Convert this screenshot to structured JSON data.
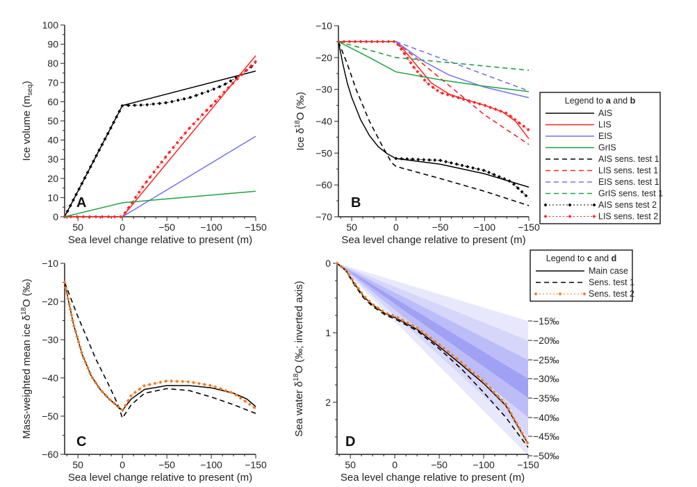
{
  "chart_data": [
    {
      "panel": "A",
      "type": "line",
      "xlabel": "Sea level change relative to present (m)",
      "ylabel": "Ice volume (m",
      "ylabel_sub": "seq",
      "ylabel_end": ")",
      "xlim": [
        65,
        -150
      ],
      "ylim": [
        0,
        100
      ],
      "xticks": [
        50,
        0,
        -50,
        -100,
        -150
      ],
      "yticks": [
        0,
        10,
        20,
        30,
        40,
        50,
        60,
        70,
        80,
        90,
        100
      ],
      "yminor": 5,
      "series": [
        {
          "name": "AIS",
          "color": "#000000",
          "style": "solid",
          "x": [
            65,
            0,
            -150
          ],
          "y": [
            0,
            58,
            76
          ]
        },
        {
          "name": "AIS sens test 2",
          "color": "#000000",
          "style": "marker",
          "x": [
            65,
            0,
            -25,
            -50,
            -75,
            -100,
            -115,
            -130,
            -150
          ],
          "y": [
            0,
            58,
            58.3,
            59.5,
            62,
            66,
            69,
            73,
            80
          ]
        },
        {
          "name": "LIS",
          "color": "#ff2020",
          "style": "solid",
          "x": [
            65,
            0,
            -150
          ],
          "y": [
            0,
            0,
            84
          ]
        },
        {
          "name": "LIS sens. test 2",
          "color": "#ff2020",
          "style": "marker",
          "x": [
            65,
            0,
            -25,
            -50,
            -75,
            -100,
            -125,
            -150
          ],
          "y": [
            0,
            0,
            17,
            32,
            46,
            58,
            70,
            81
          ]
        },
        {
          "name": "EIS",
          "color": "#7070f0",
          "style": "solid",
          "x": [
            0,
            -150
          ],
          "y": [
            0,
            42
          ]
        },
        {
          "name": "GrIS",
          "color": "#20a040",
          "style": "solid",
          "x": [
            65,
            0,
            -150
          ],
          "y": [
            0,
            7.3,
            13.3
          ]
        }
      ]
    },
    {
      "panel": "B",
      "type": "line",
      "xlabel": "Sea level change relative to present (m)",
      "ylabel": "Ice δ",
      "ylabel_sup": "18",
      "ylabel_end": "O (‰)",
      "xlim": [
        65,
        -150
      ],
      "ylim": [
        -70,
        -10
      ],
      "xticks": [
        50,
        0,
        -50,
        -100,
        -150
      ],
      "yticks": [
        -70,
        -60,
        -50,
        -40,
        -30,
        -20,
        -10
      ],
      "yminor": 5,
      "series": [
        {
          "name": "AIS",
          "color": "#000000",
          "style": "solid",
          "x": [
            65,
            60,
            55,
            50,
            40,
            30,
            20,
            10,
            0,
            -50,
            -100,
            -150
          ],
          "y": [
            -15,
            -22,
            -28,
            -32.5,
            -39.5,
            -44.5,
            -48,
            -50.2,
            -51.7,
            -53.5,
            -56.5,
            -60.7
          ]
        },
        {
          "name": "AIS sens. test 1",
          "color": "#000000",
          "style": "dashed",
          "x": [
            65,
            55,
            45,
            30,
            15,
            5,
            0,
            -50,
            -100,
            -150
          ],
          "y": [
            -15,
            -22,
            -30,
            -40,
            -48,
            -53,
            -54.2,
            -58,
            -62,
            -66.5
          ]
        },
        {
          "name": "AIS sens test 2",
          "color": "#000000",
          "style": "marker",
          "x": [
            0,
            -50,
            -100,
            -130,
            -150
          ],
          "y": [
            -51.7,
            -52.3,
            -55.5,
            -59,
            -64.2
          ]
        },
        {
          "name": "LIS",
          "color": "#ff2020",
          "style": "solid",
          "x": [
            65,
            0,
            -10,
            -25,
            -40,
            -60,
            -80,
            -100,
            -120,
            -135,
            -150
          ],
          "y": [
            -15,
            -15,
            -18,
            -23,
            -28,
            -31.5,
            -33.3,
            -35,
            -37,
            -40,
            -45.5
          ]
        },
        {
          "name": "LIS sens. test 1",
          "color": "#ff2020",
          "style": "dashed",
          "x": [
            0,
            -50,
            -100,
            -150
          ],
          "y": [
            -15,
            -26.5,
            -38,
            -47.3
          ]
        },
        {
          "name": "LIS sens. test 2",
          "color": "#ff2020",
          "style": "marker",
          "x": [
            65,
            0,
            -10,
            -20,
            -35,
            -50,
            -75,
            -100,
            -125,
            -150
          ],
          "y": [
            -15,
            -15,
            -19,
            -23,
            -28,
            -31,
            -33,
            -35,
            -37.5,
            -42.8
          ]
        },
        {
          "name": "EIS",
          "color": "#7070f0",
          "style": "solid",
          "x": [
            0,
            -30,
            -60,
            -100,
            -150
          ],
          "y": [
            -15,
            -21,
            -25.5,
            -29.3,
            -32.6
          ]
        },
        {
          "name": "EIS sens. test 1",
          "color": "#7070f0",
          "style": "dashed",
          "x": [
            0,
            -150
          ],
          "y": [
            -15,
            -30.5
          ]
        },
        {
          "name": "GrIS",
          "color": "#20a040",
          "style": "solid",
          "x": [
            65,
            30,
            0,
            -50,
            -100,
            -150
          ],
          "y": [
            -15,
            -20,
            -24.5,
            -27,
            -29,
            -30.7
          ]
        },
        {
          "name": "GrIS sens. test 1",
          "color": "#20a040",
          "style": "dashed",
          "x": [
            65,
            0,
            -150
          ],
          "y": [
            -15,
            -20,
            -24
          ]
        }
      ]
    },
    {
      "panel": "C",
      "type": "line",
      "xlabel": "Sea level change relative to present (m)",
      "ylabel": "Mass-weighted mean ice δ",
      "ylabel_sup": "18",
      "ylabel_end": "O (‰)",
      "xlim": [
        65,
        -150
      ],
      "ylim": [
        -60,
        -10
      ],
      "xticks": [
        50,
        0,
        -50,
        -100,
        -150
      ],
      "yticks": [
        -60,
        -50,
        -40,
        -30,
        -20,
        -10
      ],
      "yminor": 5,
      "series": [
        {
          "name": "Main case",
          "color": "#000000",
          "style": "solid",
          "x": [
            65,
            55,
            45,
            35,
            25,
            15,
            5,
            0,
            -10,
            -25,
            -50,
            -75,
            -100,
            -125,
            -140,
            -150
          ],
          "y": [
            -15,
            -26,
            -34,
            -39.5,
            -43,
            -45.5,
            -47.5,
            -48.5,
            -45.5,
            -43,
            -42,
            -42,
            -42.6,
            -44,
            -45.5,
            -47.5
          ]
        },
        {
          "name": "Sens. test 1",
          "color": "#000000",
          "style": "dashed",
          "x": [
            65,
            50,
            30,
            15,
            5,
            0,
            -10,
            -25,
            -50,
            -75,
            -100,
            -125,
            -150
          ],
          "y": [
            -15,
            -24,
            -35,
            -42,
            -47,
            -50.5,
            -47,
            -44,
            -42.8,
            -43.3,
            -45,
            -47,
            -49.3
          ]
        },
        {
          "name": "Sens. test 2",
          "color": "#f07820",
          "style": "marker",
          "x": [
            65,
            55,
            45,
            35,
            25,
            15,
            5,
            0,
            -10,
            -25,
            -50,
            -75,
            -100,
            -125,
            -150
          ],
          "y": [
            -15,
            -26,
            -34,
            -39.5,
            -43,
            -45.5,
            -47.5,
            -48.5,
            -44.5,
            -42,
            -40.8,
            -41,
            -42,
            -44,
            -48
          ]
        }
      ]
    },
    {
      "panel": "D",
      "type": "line",
      "xlabel": "Sea level change relative to present (m)",
      "ylabel": "Sea water δ",
      "ylabel_sup": "18",
      "ylabel_end": "O (‰; inverted axis)",
      "xlim": [
        65,
        -150
      ],
      "ylim": [
        0,
        2.75
      ],
      "inverted": true,
      "xticks": [
        50,
        0,
        -50,
        -100,
        -150
      ],
      "yticks": [
        0,
        1,
        2
      ],
      "yminor": 0.25,
      "fan": {
        "ice_d18O": [
          -15,
          -20,
          -25,
          -30,
          -35,
          -40,
          -45,
          -50
        ],
        "labels": [
          "−15‰",
          "−20‰",
          "−25‰",
          "−30‰",
          "−35‰",
          "−40‰",
          "−45‰",
          "−50‰"
        ],
        "end_values": [
          0.83,
          1.11,
          1.39,
          1.66,
          1.94,
          2.22,
          2.49,
          2.77
        ],
        "band_colors": [
          "#e8e8fc",
          "#d6d6fa",
          "#bcbcf8",
          "#a0a0f4",
          "#bcbcf8",
          "#d6d6fa",
          "#e8e8fc"
        ]
      },
      "series": [
        {
          "name": "Main case",
          "color": "#000000",
          "style": "solid",
          "x": [
            65,
            55,
            45,
            35,
            25,
            10,
            0,
            -25,
            -50,
            -75,
            -100,
            -125,
            -150
          ],
          "y": [
            0,
            0.1,
            0.3,
            0.48,
            0.6,
            0.73,
            0.78,
            0.95,
            1.2,
            1.46,
            1.73,
            2.05,
            2.6
          ]
        },
        {
          "name": "Sens. test 1",
          "color": "#000000",
          "style": "dashed",
          "x": [
            65,
            55,
            45,
            35,
            25,
            10,
            0,
            -25,
            -50,
            -75,
            -100,
            -125,
            -150
          ],
          "y": [
            0,
            0.11,
            0.32,
            0.5,
            0.62,
            0.75,
            0.8,
            0.97,
            1.23,
            1.52,
            1.86,
            2.22,
            2.65
          ]
        },
        {
          "name": "Sens. test 2",
          "color": "#f07820",
          "style": "marker",
          "x": [
            65,
            55,
            45,
            35,
            25,
            10,
            0,
            -25,
            -50,
            -75,
            -100,
            -125,
            -150
          ],
          "y": [
            0,
            0.1,
            0.29,
            0.47,
            0.59,
            0.72,
            0.76,
            0.93,
            1.17,
            1.43,
            1.7,
            2.03,
            2.6
          ]
        }
      ]
    }
  ],
  "legend_ab": {
    "title_pre": "Legend to ",
    "title_a": "a",
    "title_mid": " and ",
    "title_b": "b",
    "items": [
      {
        "label": "AIS",
        "color": "#000000",
        "style": "solid"
      },
      {
        "label": "LIS",
        "color": "#ff2020",
        "style": "solid"
      },
      {
        "label": "EIS",
        "color": "#7070f0",
        "style": "solid"
      },
      {
        "label": "GrIS",
        "color": "#20a040",
        "style": "solid"
      },
      {
        "label": "AIS sens. test 1",
        "color": "#000000",
        "style": "dashed"
      },
      {
        "label": "LIS sens. test 1",
        "color": "#ff2020",
        "style": "dashed"
      },
      {
        "label": "EIS sens. test 1",
        "color": "#7070f0",
        "style": "dashed"
      },
      {
        "label": "GrIS sens. test 1",
        "color": "#20a040",
        "style": "dashed"
      },
      {
        "label": "AIS sens test 2",
        "color": "#000000",
        "style": "marker"
      },
      {
        "label": "LIS sens. test 2",
        "color": "#ff2020",
        "style": "marker"
      }
    ]
  },
  "legend_cd": {
    "title_pre": "Legend to ",
    "title_a": "c",
    "title_mid": " and ",
    "title_b": "d",
    "items": [
      {
        "label": "Main case",
        "color": "#000000",
        "style": "solid"
      },
      {
        "label": "Sens. test 1",
        "color": "#000000",
        "style": "dashed"
      },
      {
        "label": "Sens. test 2",
        "color": "#f07820",
        "style": "marker"
      }
    ]
  }
}
